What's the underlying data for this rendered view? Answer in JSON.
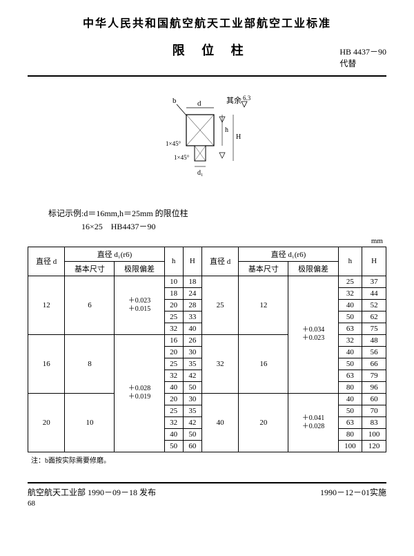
{
  "header": "中华人民共和国航空航天工业部航空工业标准",
  "title": "限 位 柱",
  "code": "HB 4437－90",
  "replace": "代替",
  "example_line1": "标记示例:d＝16mm,h＝25mm 的限位柱",
  "example_line2": "16×25　HB4437－90",
  "unit": "mm",
  "th_d": "直径 d",
  "th_d1r6": "直径 d₁(r6)",
  "th_basic": "基本尺寸",
  "th_limit": "极限偏差",
  "th_h": "h",
  "th_H": "H",
  "diagram_labels": {
    "d": "d",
    "b": "b",
    "rest": "其余",
    "ra": "6.3",
    "ch1": "1×45°",
    "ch2": "1×45°",
    "h": "h",
    "H": "H",
    "d1": "d₁"
  },
  "left": [
    {
      "d": "12",
      "basic": "6",
      "tol": "＋0.023<br>＋0.015",
      "rows": [
        [
          "10",
          "18"
        ],
        [
          "18",
          "24"
        ],
        [
          "20",
          "28"
        ],
        [
          "25",
          "33"
        ],
        [
          "32",
          "40"
        ]
      ]
    },
    {
      "d": "16",
      "basic": "8",
      "tol": "＋0.028<br>＋0.019",
      "rows": [
        [
          "16",
          "26"
        ],
        [
          "20",
          "30"
        ],
        [
          "25",
          "35"
        ],
        [
          "32",
          "42"
        ],
        [
          "40",
          "50"
        ]
      ]
    },
    {
      "d": "20",
      "basic": "10",
      "tol": "＋0.028<br>＋0.019",
      "rows": [
        [
          "20",
          "30"
        ],
        [
          "25",
          "35"
        ],
        [
          "32",
          "42"
        ],
        [
          "40",
          "50"
        ],
        [
          "50",
          "60"
        ]
      ]
    }
  ],
  "right": [
    {
      "d": "25",
      "basic": "12",
      "tol": "＋0.034<br>＋0.023",
      "rows": [
        [
          "25",
          "37"
        ],
        [
          "32",
          "44"
        ],
        [
          "40",
          "52"
        ],
        [
          "50",
          "62"
        ],
        [
          "63",
          "75"
        ]
      ]
    },
    {
      "d": "32",
      "basic": "16",
      "tol": "＋0.034<br>＋0.023",
      "rows": [
        [
          "32",
          "48"
        ],
        [
          "40",
          "56"
        ],
        [
          "50",
          "66"
        ],
        [
          "63",
          "79"
        ],
        [
          "80",
          "96"
        ]
      ]
    },
    {
      "d": "40",
      "basic": "20",
      "tol": "＋0.041<br>＋0.028",
      "rows": [
        [
          "40",
          "60"
        ],
        [
          "50",
          "70"
        ],
        [
          "63",
          "83"
        ],
        [
          "80",
          "100"
        ],
        [
          "100",
          "120"
        ]
      ]
    }
  ],
  "note": "注：b面按实际需要修磨。",
  "footer_left": "航空航天工业部 1990－09－18 发布",
  "footer_right": "1990－12－01实施",
  "page": "68"
}
